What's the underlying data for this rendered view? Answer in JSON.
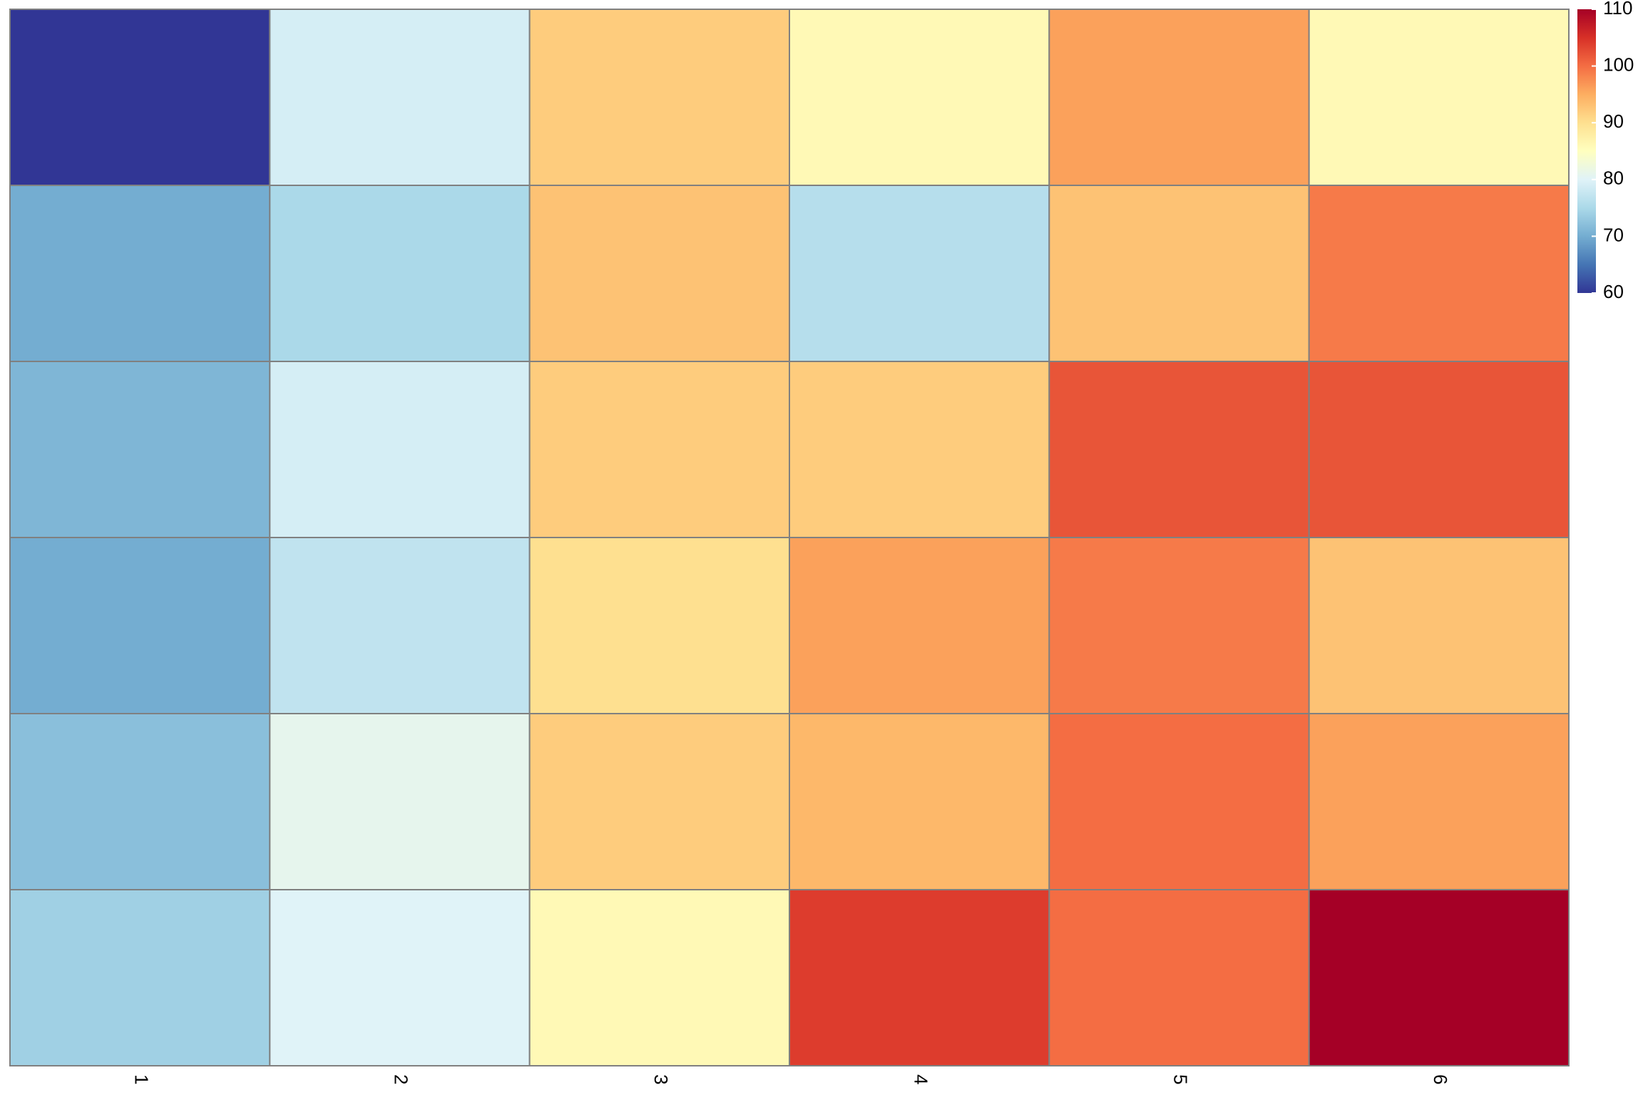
{
  "chart_data": {
    "type": "heatmap",
    "x_labels": [
      "1",
      "2",
      "3",
      "4",
      "5",
      "6"
    ],
    "values": [
      [
        60,
        79,
        92,
        86,
        96,
        86
      ],
      [
        70,
        75,
        93,
        76,
        93,
        99
      ],
      [
        71,
        79,
        92,
        92,
        102,
        102
      ],
      [
        70,
        77,
        90,
        96,
        99,
        93
      ],
      [
        72,
        81,
        92,
        94,
        100,
        96
      ],
      [
        74,
        80,
        86,
        104,
        100,
        110
      ]
    ],
    "colorbar": {
      "min": 60,
      "max": 110,
      "ticks": [
        "60",
        "70",
        "80",
        "90",
        "100",
        "110"
      ]
    },
    "colorscale": [
      "#313695",
      "#4575b4",
      "#74add1",
      "#abd9e9",
      "#e0f3f8",
      "#ffffbf",
      "#fee090",
      "#fdae61",
      "#f46d43",
      "#d73027",
      "#a50026"
    ],
    "cell_border_color": "#808080",
    "grid": false
  }
}
